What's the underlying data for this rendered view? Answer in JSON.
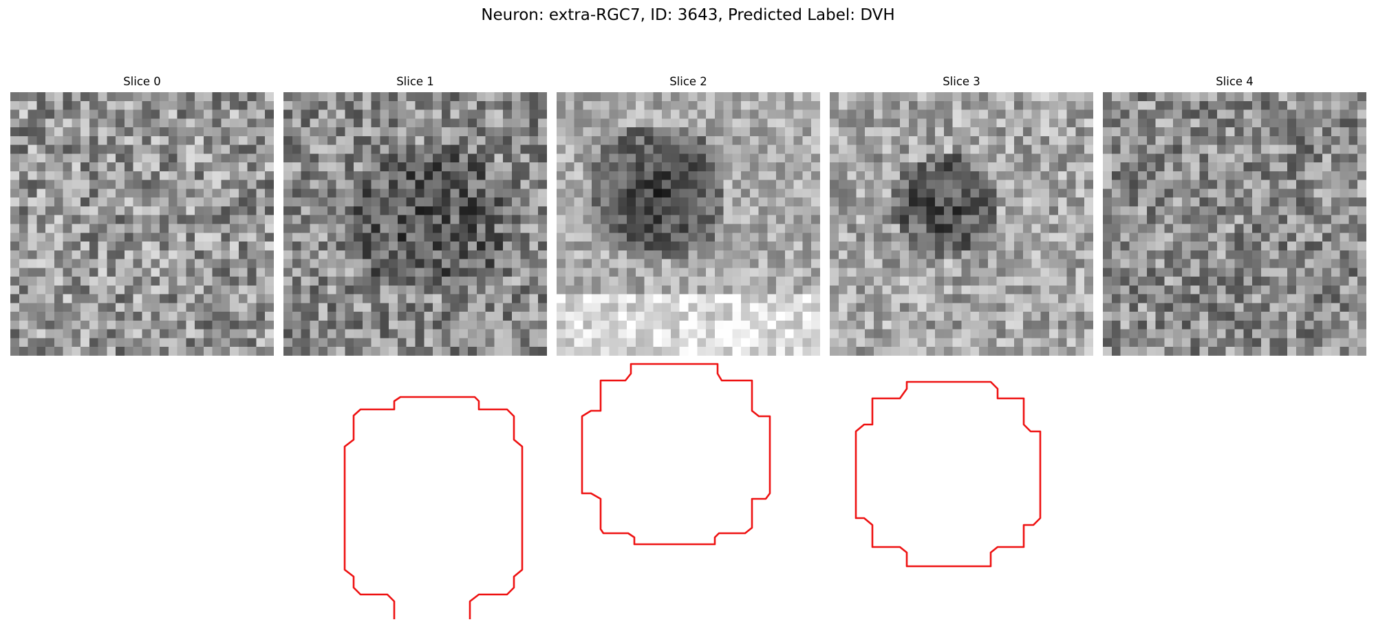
{
  "title": "Neuron: extra-RGC7, ID: 3643, Predicted Label: DVH",
  "panels": [
    {
      "title": "Slice 0",
      "has_contour": false
    },
    {
      "title": "Slice 1",
      "has_contour": true
    },
    {
      "title": "Slice 2",
      "has_contour": true
    },
    {
      "title": "Slice 3",
      "has_contour": true
    },
    {
      "title": "Slice 4",
      "has_contour": false
    }
  ],
  "colors": {
    "contour": "#ee1111",
    "background": "#ffffff"
  },
  "colormap": "gray"
}
